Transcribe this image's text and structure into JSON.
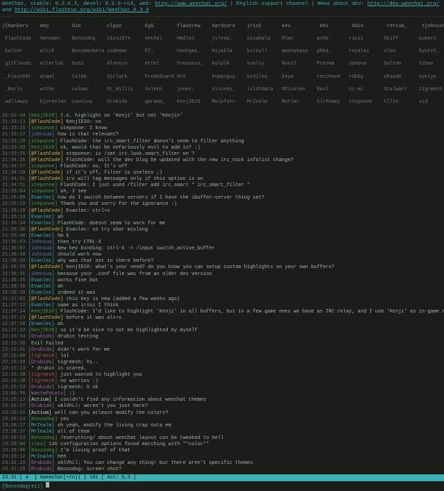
{
  "header": {
    "text": "WeeChat, stable: 0.2.6.3, devel: 0.3.0-rc3, web: ",
    "link1": "http://www.weechat.org/",
    "mid": " | English support channel | News about dev: ",
    "link2": "http://dev.weechat.org/",
    "mid2": " and ",
    "link3": "http://wiki.flashtux.org/wiki/WeeChat_0.3.0"
  },
  "nicks": {
    "r0": "|ChanServ    aep        bio         clppo        EgS        flashrew    hardcore    jr1ck       kes          mXv        Odin        rettub_     sjohnson    Stropp      xorxorand",
    "r1": " FlashCode   Amnoden    Bonzodog    c1ns1974     eethel     Hedlos      jslvow_     kinabalu    Mlon        pnhb       ricul       Skiff       sukert      ulim        xt",
    "r2": " kalter      altch      Bossmanbeta codemac      ET_        noohgas_    Hiyakla     kirkyll     moonphase   pNed_      royalei     sleo        Syntch_     WastePotato Zanberzi",
    "r3": " gitflouds   alterlub   bunz        dlonsys      ettel      honuuxus_   kolplk      koolty      Nxnzl       Presma     sanova      Solton      tchan       Wroogi",
    "r4": " _Flashb0t   ataml      Caleb       djclark      FreakGuard HrZ         humanguy    kodileo     keya        retchoed   rUbby       shaade      sottys      ThePink     whuifkort",
    "r5": " _Borls      wtthe      calmar      Dr_Willis    Golemi     jones-      kxinxky_    lildtdata   MXisolee    Rasl       si-mi       Stalwart    tigrmesh    Wraiithan",
    "r6": " adllaway    bjornnlon  cantina     Drubido      garame_    KenjIE20    Molofotn    MrInalm     Rotler      SlrFowey   steponne    tllto       xid"
  },
  "log": [
    {
      "t": "21:32:44",
      "n": "KenjIE20",
      "c": "nk-g",
      "m": "I.e. highlight on 'Kenji' but not 'Kenji>'"
    },
    {
      "t": "21:33:13",
      "n": "@FlashCode",
      "c": "nk-y",
      "m": "KenjIE20: no"
    },
    {
      "t": "21:33:15",
      "n": "steponne",
      "c": "nk-g",
      "m": "steponne: I know"
    },
    {
      "t": "21:33:27",
      "n": "johnsua",
      "c": "nk-b",
      "m": "how is that relevant?"
    },
    {
      "t": "21:33:29",
      "n": "steponne",
      "c": "nk-g",
      "m": "FlashCode: the irc_smart_filter doesn't seem to filter anything"
    },
    {
      "t": "21:33:43",
      "n": "KenjIE20",
      "c": "nk-g",
      "m": "ok, would that be nefariously evil to add in? :)"
    },
    {
      "t": "21:33:55",
      "n": "@FlashCode",
      "c": "nk-y",
      "m": "steponne: is /set irc.look.smart_filter on ?"
    },
    {
      "t": "21:34:26",
      "n": "@FlashCode",
      "c": "nk-y",
      "m": "FlashCode: will the dev blog be updated with the new irc_n1ck infolist change?"
    },
    {
      "t": "21:34:27",
      "n": "steponne",
      "c": "nk-g",
      "m": "FlashCode: no, It's off"
    },
    {
      "t": "21:34:39",
      "n": "@FlashCode",
      "c": "nk-y",
      "m": "if it's off, filter is useless ;)"
    },
    {
      "t": "21:34:51",
      "n": "@FlashCode",
      "c": "nk-y",
      "m": "irc will tag messages only if this option is on"
    },
    {
      "t": "21:34:51",
      "n": "steponne",
      "c": "nk-g",
      "m": "FlashCode: I just used /filter add irc_smart * irc_smart_filter *"
    },
    {
      "t": "21:35:04",
      "n": "steponne",
      "c": "nk-g",
      "m": "ah, I see"
    },
    {
      "t": "21:35:09",
      "n": "Evanlec",
      "c": "nk-c",
      "m": "how do I switch between servers if I have the ibuffer-server thing set?"
    },
    {
      "t": "21:35:19",
      "n": "steponne",
      "c": "nk-g",
      "m": "Thank you and sorry for the ignorance :)"
    },
    {
      "t": "21:35:20",
      "n": "@FlashCode",
      "c": "nk-y",
      "m": "Evanlec: ctrl+x"
    },
    {
      "t": "21:35:23",
      "n": "Evanlec",
      "c": "nk-c",
      "m": "ah"
    },
    {
      "t": "21:35:34",
      "n": "Evanlec",
      "c": "nk-c",
      "m": "FlashCode: doesnt seem to work for me"
    },
    {
      "t": "21:35:38",
      "n": "@FlashCode",
      "c": "nk-y",
      "m": "Evanlec: so try xbar mislsng"
    },
    {
      "t": "21:35:40",
      "n": "Evanlec",
      "c": "nk-c",
      "m": "hm k"
    },
    {
      "t": "21:35:53",
      "n": "Johnsua",
      "c": "nk-b",
      "m": "then try CTRL-X"
    },
    {
      "t": "21:36:07",
      "n": "Johnsua",
      "c": "nk-b",
      "m": "New key binding: ctrl-X -> /input switch_active_buffer"
    },
    {
      "t": "21:36:18",
      "n": "Johnsua",
      "c": "nk-b",
      "m": "should work now"
    },
    {
      "t": "21:36:19",
      "n": "Evanlec",
      "c": "nk-c",
      "m": "why was that not in there before?"
    },
    {
      "t": "21:36:29",
      "n": "@FlashCode",
      "c": "nk-y",
      "m": "KenjIE20: what's your need? do you know you can setup custom highlights on your own buffers?"
    },
    {
      "t": "21:36:31",
      "n": "Johnsua",
      "c": "nk-b",
      "m": "because your .conf file was from an older dev version"
    },
    {
      "t": "21:36:35",
      "n": "Evanlec",
      "c": "nk-c",
      "m": "works fine but"
    },
    {
      "t": "21:36:36",
      "n": "Evanlec",
      "c": "nk-c",
      "m": "ah"
    },
    {
      "t": "21:36:39",
      "n": "Evanlec",
      "c": "nk-c",
      "m": "indeed it was"
    },
    {
      "t": "21:37:02",
      "n": "@FlashCode",
      "c": "nk-y",
      "m": "this key is new (added a few weeks ago)"
    },
    {
      "t": "21:37:12",
      "n": "Evanlec",
      "c": "nk-c",
      "m": "same as irssi I think"
    },
    {
      "t": "21:37:14",
      "n": "KenjIE20",
      "c": "nk-g",
      "m": "FlashCode: I'd like to highlight 'Kenji' in all buffers, but in a few game ones we have an IRC relay, and I use 'Kenji' as in-game nick"
    },
    {
      "t": "21:37:23",
      "n": "@FlashCode",
      "c": "nk-y",
      "m": "before it was alt+s"
    },
    {
      "t": "21:37:28",
      "n": "Evanlec",
      "c": "nk-c",
      "m": "ah"
    },
    {
      "t": "21:37:33",
      "n": "KenjIE20",
      "c": "nk-g",
      "m": "so it'd be nice to not be highlighted by myself"
    },
    {
      "t": "22:15:34",
      "n": "Drubido",
      "c": "nk-m",
      "m": "drubin testing"
    },
    {
      "t": "22:15:39",
      "n": "",
      "c": "",
      "m": "Evil Failed"
    },
    {
      "t": "22:15:41",
      "n": "Drubido",
      "c": "nk-m",
      "m": "didn't work for me"
    },
    {
      "t": "22:15:08",
      "n": "tigrmesh",
      "c": "nk-r",
      "m": "lol"
    },
    {
      "t": "22:15:18",
      "n": "Drubido",
      "c": "nk-m",
      "m": "tigrmesh: hi.."
    },
    {
      "t": "22:15:23",
      "n": "",
      "c": "",
      "m": "* drubin is scared."
    },
    {
      "t": "22:15:38",
      "n": "tigrmesh",
      "c": "nk-r",
      "m": "just wanted to highlight you"
    },
    {
      "t": "22:15:38",
      "n": "tigrmesh",
      "c": "nk-r",
      "m": "no worries :)"
    },
    {
      "t": "22:15:53",
      "n": "Drubido",
      "c": "nk-m",
      "m": "tigrmesh: O ok"
    },
    {
      "t": "23:05:56",
      "n": "WastePotato",
      "c": "nk-m",
      "m": ":)"
    },
    {
      "t": "23:25:13",
      "n": "Actium",
      "c": "nk-w",
      "m": "I couldn't find any information about weechat themes"
    },
    {
      "t": "23:26:27",
      "n": "Drubido",
      "c": "nk-m",
      "m": "xAlVhLl: weren't you just here?"
    },
    {
      "t": "23:28:15",
      "n": "Actium",
      "c": "nk-w",
      "m": "well can you atleast modify the colors?"
    },
    {
      "t": "23:28:24",
      "n": "Bonzodog",
      "c": "nk-g",
      "m": "yes"
    },
    {
      "t": "23:28:27",
      "n": "MrInalm",
      "c": "nk-c",
      "m": "oh yeah, modify the living crap outa em"
    },
    {
      "t": "23:28:37",
      "n": "MrInalm",
      "c": "nk-c",
      "m": "all of them"
    },
    {
      "t": "23:28:53",
      "n": "Bonzodog",
      "c": "nk-g",
      "m": "/everything/ about weechat layout can be tweaked to hell"
    },
    {
      "t": "23:29:04",
      "n": "sleo",
      "c": "nk-g",
      "m": "136 configuration options found matching with \"*color*\""
    },
    {
      "t": "23:29:06",
      "n": "Bonzodog",
      "c": "nk-g",
      "m": "I'm living proof of that"
    },
    {
      "t": "23:29:12",
      "n": "MrInalm",
      "c": "nk-c",
      "m": "heh"
    },
    {
      "t": "23:31:15",
      "n": "Drubido",
      "c": "nk-m",
      "m": "xAlVhLl: You can change any thing! but there aren't specific themes"
    },
    {
      "t": "23:31:25",
      "n": "Drubido",
      "c": "nk-m",
      "m": "Bonzodog: screen shot?"
    }
  ],
  "bar": "23:31 [ 4  ] #weechat(+tn){ } 101 [ Act: 5,3 ]",
  "input": {
    "label": "[Bonzodog(ei)]"
  }
}
